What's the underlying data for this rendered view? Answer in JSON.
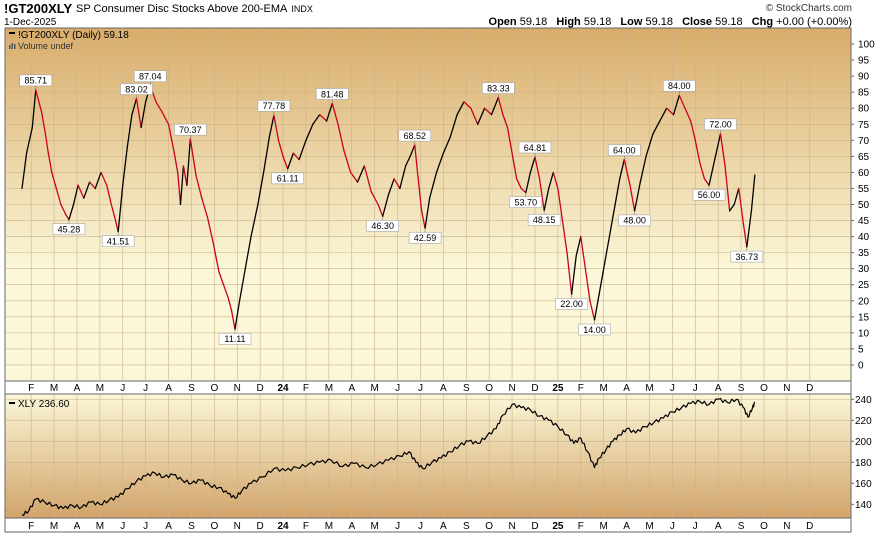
{
  "header": {
    "symbol": "!GT200XLY",
    "description": "SP Consumer Disc Stocks Above 200-EMA",
    "exchange": "INDX",
    "date": "1-Dec-2025",
    "brand": "© StockCharts.com",
    "open_label": "Open",
    "open": "59.18",
    "high_label": "High",
    "high": "59.18",
    "low_label": "Low",
    "low": "59.18",
    "close_label": "Close",
    "close": "59.18",
    "chg_label": "Chg",
    "chg": "+0.00 (+0.00%)"
  },
  "top_panel": {
    "legend": "!GT200XLY (Daily) 59.18",
    "volume_legend": "Volume undef"
  },
  "bottom_panel": {
    "legend": "XLY 236.60"
  },
  "colors": {
    "bg_top": "#d9ac6a",
    "bg_mid": "#fbf7d8",
    "bg_bottom": "#d2a46a",
    "up_line": "#000000",
    "down_line": "#cc0022"
  },
  "chart_data": [
    {
      "type": "line",
      "series_name": "!GT200XLY (Daily)",
      "ylim": [
        -5,
        105
      ],
      "y_ticks": [
        0,
        5,
        10,
        15,
        20,
        25,
        30,
        35,
        40,
        45,
        50,
        55,
        60,
        65,
        70,
        75,
        80,
        85,
        90,
        95,
        100
      ],
      "x_ticks": [
        "F",
        "M",
        "A",
        "M",
        "J",
        "J",
        "A",
        "S",
        "O",
        "N",
        "D",
        "24",
        "F",
        "M",
        "A",
        "M",
        "J",
        "J",
        "A",
        "S",
        "O",
        "N",
        "D",
        "25",
        "F",
        "M",
        "A",
        "M",
        "J",
        "J",
        "A",
        "S",
        "O",
        "N",
        "D"
      ],
      "x_range_months": [
        0,
        35
      ],
      "points": [
        {
          "m": 0.0,
          "v": 55
        },
        {
          "m": 0.2,
          "v": 66
        },
        {
          "m": 0.45,
          "v": 74
        },
        {
          "m": 0.6,
          "v": 85.71
        },
        {
          "m": 0.85,
          "v": 79
        },
        {
          "m": 1.0,
          "v": 73
        },
        {
          "m": 1.15,
          "v": 66
        },
        {
          "m": 1.3,
          "v": 60
        },
        {
          "m": 1.5,
          "v": 55
        },
        {
          "m": 1.7,
          "v": 50
        },
        {
          "m": 1.9,
          "v": 47
        },
        {
          "m": 2.05,
          "v": 45.28
        },
        {
          "m": 2.25,
          "v": 50
        },
        {
          "m": 2.45,
          "v": 56
        },
        {
          "m": 2.7,
          "v": 52
        },
        {
          "m": 2.95,
          "v": 57
        },
        {
          "m": 3.2,
          "v": 55
        },
        {
          "m": 3.45,
          "v": 60
        },
        {
          "m": 3.7,
          "v": 56
        },
        {
          "m": 3.9,
          "v": 50
        },
        {
          "m": 4.05,
          "v": 46
        },
        {
          "m": 4.2,
          "v": 41.51
        },
        {
          "m": 4.4,
          "v": 56
        },
        {
          "m": 4.6,
          "v": 68
        },
        {
          "m": 4.8,
          "v": 78
        },
        {
          "m": 5.0,
          "v": 83.02
        },
        {
          "m": 5.2,
          "v": 74
        },
        {
          "m": 5.4,
          "v": 82
        },
        {
          "m": 5.6,
          "v": 87.04
        },
        {
          "m": 5.85,
          "v": 82
        },
        {
          "m": 6.1,
          "v": 79
        },
        {
          "m": 6.4,
          "v": 75
        },
        {
          "m": 6.65,
          "v": 66
        },
        {
          "m": 6.8,
          "v": 60
        },
        {
          "m": 6.92,
          "v": 50
        },
        {
          "m": 7.05,
          "v": 62
        },
        {
          "m": 7.2,
          "v": 56
        },
        {
          "m": 7.35,
          "v": 70.37
        },
        {
          "m": 7.6,
          "v": 59
        },
        {
          "m": 7.85,
          "v": 52
        },
        {
          "m": 8.1,
          "v": 46
        },
        {
          "m": 8.35,
          "v": 38
        },
        {
          "m": 8.6,
          "v": 29
        },
        {
          "m": 8.8,
          "v": 25
        },
        {
          "m": 9.0,
          "v": 21
        },
        {
          "m": 9.15,
          "v": 17
        },
        {
          "m": 9.3,
          "v": 11.11
        },
        {
          "m": 9.5,
          "v": 20
        },
        {
          "m": 9.75,
          "v": 30
        },
        {
          "m": 10.0,
          "v": 40
        },
        {
          "m": 10.3,
          "v": 50
        },
        {
          "m": 10.55,
          "v": 60
        },
        {
          "m": 10.8,
          "v": 71
        },
        {
          "m": 11.0,
          "v": 77.78
        },
        {
          "m": 11.2,
          "v": 70
        },
        {
          "m": 11.4,
          "v": 65
        },
        {
          "m": 11.6,
          "v": 61.11
        },
        {
          "m": 11.85,
          "v": 66
        },
        {
          "m": 12.1,
          "v": 64
        },
        {
          "m": 12.4,
          "v": 70
        },
        {
          "m": 12.7,
          "v": 75
        },
        {
          "m": 13.0,
          "v": 78
        },
        {
          "m": 13.3,
          "v": 76
        },
        {
          "m": 13.55,
          "v": 81.48
        },
        {
          "m": 13.8,
          "v": 75
        },
        {
          "m": 14.05,
          "v": 67
        },
        {
          "m": 14.35,
          "v": 60
        },
        {
          "m": 14.65,
          "v": 57
        },
        {
          "m": 14.95,
          "v": 62
        },
        {
          "m": 15.25,
          "v": 54
        },
        {
          "m": 15.55,
          "v": 50
        },
        {
          "m": 15.75,
          "v": 46.3
        },
        {
          "m": 16.0,
          "v": 53
        },
        {
          "m": 16.25,
          "v": 58
        },
        {
          "m": 16.5,
          "v": 55
        },
        {
          "m": 16.75,
          "v": 62
        },
        {
          "m": 16.95,
          "v": 65
        },
        {
          "m": 17.15,
          "v": 68.52
        },
        {
          "m": 17.3,
          "v": 58
        },
        {
          "m": 17.45,
          "v": 48
        },
        {
          "m": 17.6,
          "v": 42.59
        },
        {
          "m": 17.8,
          "v": 52
        },
        {
          "m": 18.1,
          "v": 60
        },
        {
          "m": 18.4,
          "v": 66
        },
        {
          "m": 18.7,
          "v": 71
        },
        {
          "m": 19.0,
          "v": 78
        },
        {
          "m": 19.3,
          "v": 82
        },
        {
          "m": 19.6,
          "v": 80
        },
        {
          "m": 19.9,
          "v": 75
        },
        {
          "m": 20.2,
          "v": 80
        },
        {
          "m": 20.5,
          "v": 78
        },
        {
          "m": 20.8,
          "v": 83.33
        },
        {
          "m": 21.0,
          "v": 78
        },
        {
          "m": 21.2,
          "v": 74
        },
        {
          "m": 21.4,
          "v": 66
        },
        {
          "m": 21.6,
          "v": 58
        },
        {
          "m": 21.8,
          "v": 55
        },
        {
          "m": 22.0,
          "v": 53.7
        },
        {
          "m": 22.2,
          "v": 60
        },
        {
          "m": 22.4,
          "v": 64.81
        },
        {
          "m": 22.6,
          "v": 58
        },
        {
          "m": 22.8,
          "v": 48.15
        },
        {
          "m": 23.0,
          "v": 55
        },
        {
          "m": 23.2,
          "v": 60
        },
        {
          "m": 23.4,
          "v": 55
        },
        {
          "m": 23.6,
          "v": 45
        },
        {
          "m": 23.8,
          "v": 35
        },
        {
          "m": 24.0,
          "v": 22.0
        },
        {
          "m": 24.2,
          "v": 34
        },
        {
          "m": 24.4,
          "v": 40
        },
        {
          "m": 24.6,
          "v": 30
        },
        {
          "m": 24.8,
          "v": 20
        },
        {
          "m": 25.0,
          "v": 14.0
        },
        {
          "m": 25.2,
          "v": 22
        },
        {
          "m": 25.45,
          "v": 32
        },
        {
          "m": 25.7,
          "v": 42
        },
        {
          "m": 25.9,
          "v": 50
        },
        {
          "m": 26.1,
          "v": 58
        },
        {
          "m": 26.3,
          "v": 64.0
        },
        {
          "m": 26.55,
          "v": 56
        },
        {
          "m": 26.75,
          "v": 48.0
        },
        {
          "m": 27.0,
          "v": 57
        },
        {
          "m": 27.25,
          "v": 65
        },
        {
          "m": 27.55,
          "v": 72
        },
        {
          "m": 27.85,
          "v": 76
        },
        {
          "m": 28.15,
          "v": 80
        },
        {
          "m": 28.45,
          "v": 78
        },
        {
          "m": 28.7,
          "v": 84.0
        },
        {
          "m": 28.95,
          "v": 80
        },
        {
          "m": 29.2,
          "v": 76
        },
        {
          "m": 29.4,
          "v": 70
        },
        {
          "m": 29.6,
          "v": 63
        },
        {
          "m": 29.8,
          "v": 58
        },
        {
          "m": 30.0,
          "v": 56.0
        },
        {
          "m": 30.25,
          "v": 64
        },
        {
          "m": 30.5,
          "v": 72.0
        },
        {
          "m": 30.7,
          "v": 62
        },
        {
          "m": 30.9,
          "v": 48
        },
        {
          "m": 31.1,
          "v": 50
        },
        {
          "m": 31.3,
          "v": 55
        },
        {
          "m": 31.5,
          "v": 44
        },
        {
          "m": 31.65,
          "v": 36.73
        },
        {
          "m": 31.85,
          "v": 48
        },
        {
          "m": 32.0,
          "v": 59.18
        }
      ],
      "labels": [
        {
          "m": 0.6,
          "v": 85.71,
          "text": "85.71",
          "pos": "above"
        },
        {
          "m": 2.05,
          "v": 45.28,
          "text": "45.28",
          "pos": "below"
        },
        {
          "m": 4.2,
          "v": 41.51,
          "text": "41.51",
          "pos": "below"
        },
        {
          "m": 5.0,
          "v": 83.02,
          "text": "83.02",
          "pos": "above"
        },
        {
          "m": 5.6,
          "v": 87.04,
          "text": "87.04",
          "pos": "above"
        },
        {
          "m": 7.35,
          "v": 70.37,
          "text": "70.37",
          "pos": "above"
        },
        {
          "m": 9.3,
          "v": 11.11,
          "text": "11.11",
          "pos": "below"
        },
        {
          "m": 11.0,
          "v": 77.78,
          "text": "77.78",
          "pos": "above"
        },
        {
          "m": 11.6,
          "v": 61.11,
          "text": "61.11",
          "pos": "below"
        },
        {
          "m": 13.55,
          "v": 81.48,
          "text": "81.48",
          "pos": "above"
        },
        {
          "m": 15.75,
          "v": 46.3,
          "text": "46.30",
          "pos": "below"
        },
        {
          "m": 17.15,
          "v": 68.52,
          "text": "68.52",
          "pos": "above"
        },
        {
          "m": 17.6,
          "v": 42.59,
          "text": "42.59",
          "pos": "below"
        },
        {
          "m": 20.8,
          "v": 83.33,
          "text": "83.33",
          "pos": "above"
        },
        {
          "m": 22.0,
          "v": 53.7,
          "text": "53.70",
          "pos": "below"
        },
        {
          "m": 22.4,
          "v": 64.81,
          "text": "64.81",
          "pos": "above"
        },
        {
          "m": 22.8,
          "v": 48.15,
          "text": "48.15",
          "pos": "below"
        },
        {
          "m": 24.0,
          "v": 22.0,
          "text": "22.00",
          "pos": "below"
        },
        {
          "m": 25.0,
          "v": 14.0,
          "text": "14.00",
          "pos": "below"
        },
        {
          "m": 26.3,
          "v": 64.0,
          "text": "64.00",
          "pos": "above"
        },
        {
          "m": 26.75,
          "v": 48.0,
          "text": "48.00",
          "pos": "below"
        },
        {
          "m": 28.7,
          "v": 84.0,
          "text": "84.00",
          "pos": "above"
        },
        {
          "m": 30.0,
          "v": 56.0,
          "text": "56.00",
          "pos": "below"
        },
        {
          "m": 30.5,
          "v": 72.0,
          "text": "72.00",
          "pos": "above"
        },
        {
          "m": 31.65,
          "v": 36.73,
          "text": "36.73",
          "pos": "below"
        }
      ]
    },
    {
      "type": "line",
      "series_name": "XLY",
      "ylim": [
        127,
        245
      ],
      "y_ticks": [
        140,
        160,
        180,
        200,
        220,
        240
      ],
      "x_ticks": [
        "F",
        "M",
        "A",
        "M",
        "J",
        "J",
        "A",
        "S",
        "O",
        "N",
        "D",
        "24",
        "F",
        "M",
        "A",
        "M",
        "J",
        "J",
        "A",
        "S",
        "O",
        "N",
        "D",
        "25",
        "F",
        "M",
        "A",
        "M",
        "J",
        "J",
        "A",
        "S",
        "O",
        "N",
        "D"
      ],
      "x_range_months": [
        0,
        35
      ],
      "points": [
        {
          "m": 0.0,
          "v": 130
        },
        {
          "m": 0.3,
          "v": 134
        },
        {
          "m": 0.6,
          "v": 145
        },
        {
          "m": 1.0,
          "v": 142
        },
        {
          "m": 1.4,
          "v": 139
        },
        {
          "m": 1.8,
          "v": 136
        },
        {
          "m": 2.2,
          "v": 139
        },
        {
          "m": 2.6,
          "v": 137
        },
        {
          "m": 3.0,
          "v": 142
        },
        {
          "m": 3.4,
          "v": 140
        },
        {
          "m": 3.8,
          "v": 144
        },
        {
          "m": 4.2,
          "v": 147
        },
        {
          "m": 4.6,
          "v": 155
        },
        {
          "m": 5.0,
          "v": 162
        },
        {
          "m": 5.4,
          "v": 167
        },
        {
          "m": 5.8,
          "v": 170
        },
        {
          "m": 6.2,
          "v": 166
        },
        {
          "m": 6.6,
          "v": 168
        },
        {
          "m": 7.0,
          "v": 163
        },
        {
          "m": 7.4,
          "v": 160
        },
        {
          "m": 7.8,
          "v": 163
        },
        {
          "m": 8.2,
          "v": 158
        },
        {
          "m": 8.6,
          "v": 156
        },
        {
          "m": 9.0,
          "v": 150
        },
        {
          "m": 9.3,
          "v": 146
        },
        {
          "m": 9.6,
          "v": 153
        },
        {
          "m": 10.0,
          "v": 160
        },
        {
          "m": 10.5,
          "v": 166
        },
        {
          "m": 11.0,
          "v": 174
        },
        {
          "m": 11.5,
          "v": 172
        },
        {
          "m": 12.0,
          "v": 175
        },
        {
          "m": 12.5,
          "v": 178
        },
        {
          "m": 13.0,
          "v": 180
        },
        {
          "m": 13.5,
          "v": 182
        },
        {
          "m": 14.0,
          "v": 176
        },
        {
          "m": 14.5,
          "v": 179
        },
        {
          "m": 15.0,
          "v": 175
        },
        {
          "m": 15.5,
          "v": 178
        },
        {
          "m": 16.0,
          "v": 182
        },
        {
          "m": 16.5,
          "v": 186
        },
        {
          "m": 16.9,
          "v": 190
        },
        {
          "m": 17.2,
          "v": 180
        },
        {
          "m": 17.5,
          "v": 174
        },
        {
          "m": 17.9,
          "v": 180
        },
        {
          "m": 18.3,
          "v": 184
        },
        {
          "m": 18.7,
          "v": 190
        },
        {
          "m": 19.1,
          "v": 196
        },
        {
          "m": 19.5,
          "v": 200
        },
        {
          "m": 19.9,
          "v": 198
        },
        {
          "m": 20.3,
          "v": 205
        },
        {
          "m": 20.7,
          "v": 212
        },
        {
          "m": 21.0,
          "v": 225
        },
        {
          "m": 21.4,
          "v": 235
        },
        {
          "m": 21.8,
          "v": 232
        },
        {
          "m": 22.2,
          "v": 230
        },
        {
          "m": 22.6,
          "v": 224
        },
        {
          "m": 23.0,
          "v": 220
        },
        {
          "m": 23.4,
          "v": 214
        },
        {
          "m": 23.8,
          "v": 206
        },
        {
          "m": 24.1,
          "v": 198
        },
        {
          "m": 24.4,
          "v": 203
        },
        {
          "m": 24.7,
          "v": 190
        },
        {
          "m": 25.0,
          "v": 175
        },
        {
          "m": 25.2,
          "v": 184
        },
        {
          "m": 25.5,
          "v": 192
        },
        {
          "m": 25.8,
          "v": 200
        },
        {
          "m": 26.1,
          "v": 206
        },
        {
          "m": 26.4,
          "v": 212
        },
        {
          "m": 26.8,
          "v": 208
        },
        {
          "m": 27.2,
          "v": 214
        },
        {
          "m": 27.6,
          "v": 218
        },
        {
          "m": 28.0,
          "v": 222
        },
        {
          "m": 28.4,
          "v": 228
        },
        {
          "m": 28.8,
          "v": 232
        },
        {
          "m": 29.2,
          "v": 236
        },
        {
          "m": 29.6,
          "v": 238
        },
        {
          "m": 30.0,
          "v": 235
        },
        {
          "m": 30.4,
          "v": 240
        },
        {
          "m": 30.8,
          "v": 237
        },
        {
          "m": 31.2,
          "v": 240
        },
        {
          "m": 31.5,
          "v": 232
        },
        {
          "m": 31.7,
          "v": 223
        },
        {
          "m": 31.9,
          "v": 232
        },
        {
          "m": 32.0,
          "v": 236.6
        }
      ]
    }
  ]
}
